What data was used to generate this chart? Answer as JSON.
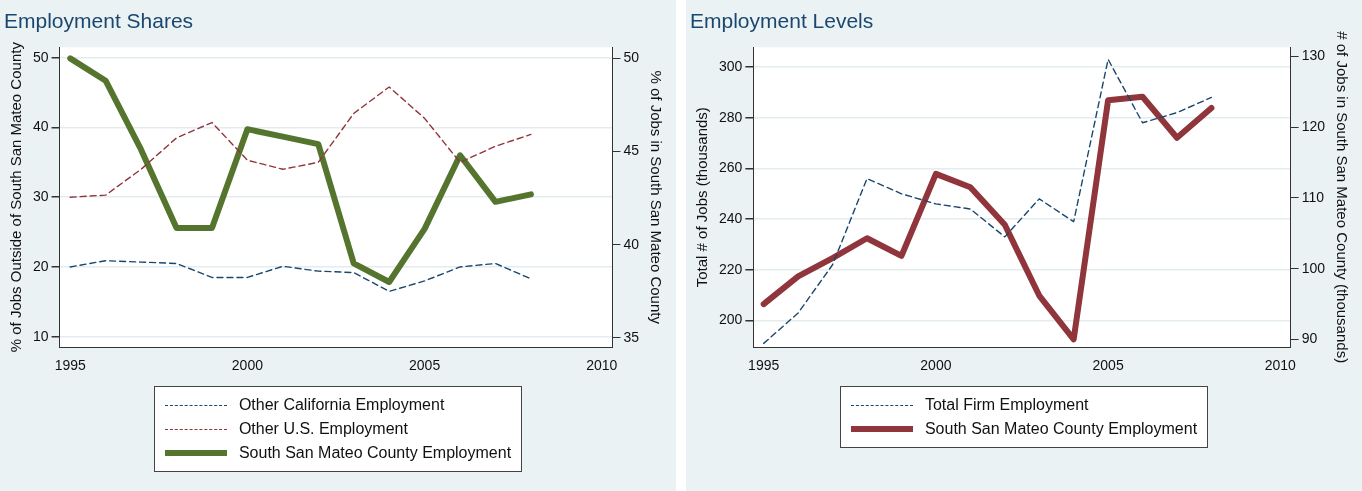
{
  "chart_data": [
    {
      "type": "line",
      "title": "Employment Shares",
      "ylabel": "% of Jobs Outside of South San Mateo County",
      "y2label": "% of Jobs in South San Mateo County",
      "x": [
        1995,
        1996,
        1997,
        1998,
        1999,
        2000,
        2001,
        2002,
        2003,
        2004,
        2005,
        2006,
        2007,
        2008
      ],
      "xlim": [
        1994.7,
        2010.3
      ],
      "xticks": [
        1995,
        2000,
        2005,
        2010
      ],
      "ylim": [
        8.5,
        51.5
      ],
      "yticks": [
        10,
        20,
        30,
        40,
        50
      ],
      "y2lim": [
        34.5,
        50.6
      ],
      "y2ticks": [
        35,
        40,
        45,
        50
      ],
      "grid": "y",
      "legend": "bottom",
      "marker": "none",
      "series": [
        {
          "name": "Other California Employment",
          "color": "#1a476f",
          "line_style": "dashed",
          "axis": "y",
          "values": [
            20,
            20.9,
            20.7,
            20.5,
            18.5,
            18.5,
            20.1,
            19.4,
            19.2,
            16.5,
            18,
            20,
            20.5,
            18.3
          ]
        },
        {
          "name": "Other U.S. Employment",
          "color": "#90353b",
          "line_style": "dashed",
          "axis": "y",
          "values": [
            30,
            30.3,
            34,
            38.5,
            40.7,
            35.3,
            34,
            35,
            42,
            45.8,
            41.3,
            35,
            37.3,
            39
          ]
        },
        {
          "name": "South San Mateo County Employment",
          "color": "#55752f",
          "line_style": "solid",
          "axis": "y2",
          "values": [
            50,
            48.8,
            45.1,
            40.9,
            40.9,
            46.2,
            45.8,
            45.4,
            39,
            38,
            40.85,
            44.8,
            42.3,
            42.7
          ]
        }
      ]
    },
    {
      "type": "line",
      "title": "Employment Levels",
      "ylabel": "Total # of Jobs (thousands)",
      "y2label": "# of Jobs in South San Mateo County (thousands)",
      "x": [
        1995,
        1996,
        1997,
        1998,
        1999,
        2000,
        2001,
        2002,
        2003,
        2004,
        2005,
        2006,
        2007,
        2008
      ],
      "xlim": [
        1994.7,
        2010.3
      ],
      "xticks": [
        1995,
        2000,
        2005,
        2010
      ],
      "ylim": [
        189.5,
        307.8
      ],
      "yticks": [
        200,
        220,
        240,
        260,
        280,
        300
      ],
      "y2lim": [
        88.9,
        131.3
      ],
      "y2ticks": [
        90,
        100,
        110,
        120,
        130
      ],
      "grid": "y",
      "legend": "bottom",
      "marker": "none",
      "series": [
        {
          "name": "Total Firm Employment",
          "color": "#1a476f",
          "line_style": "dashed",
          "axis": "y",
          "values": [
            191,
            203,
            222,
            256,
            250,
            246,
            244,
            233,
            248,
            239,
            303,
            278,
            282,
            288
          ]
        },
        {
          "name": "South San Mateo County Employment",
          "color": "#90353b",
          "line_style": "solid",
          "axis": "y2",
          "values": [
            95,
            98.9,
            101.5,
            104.3,
            101.8,
            113.4,
            111.5,
            106.2,
            96.2,
            90,
            123.8,
            124.3,
            118.5,
            122.7
          ]
        }
      ]
    }
  ]
}
